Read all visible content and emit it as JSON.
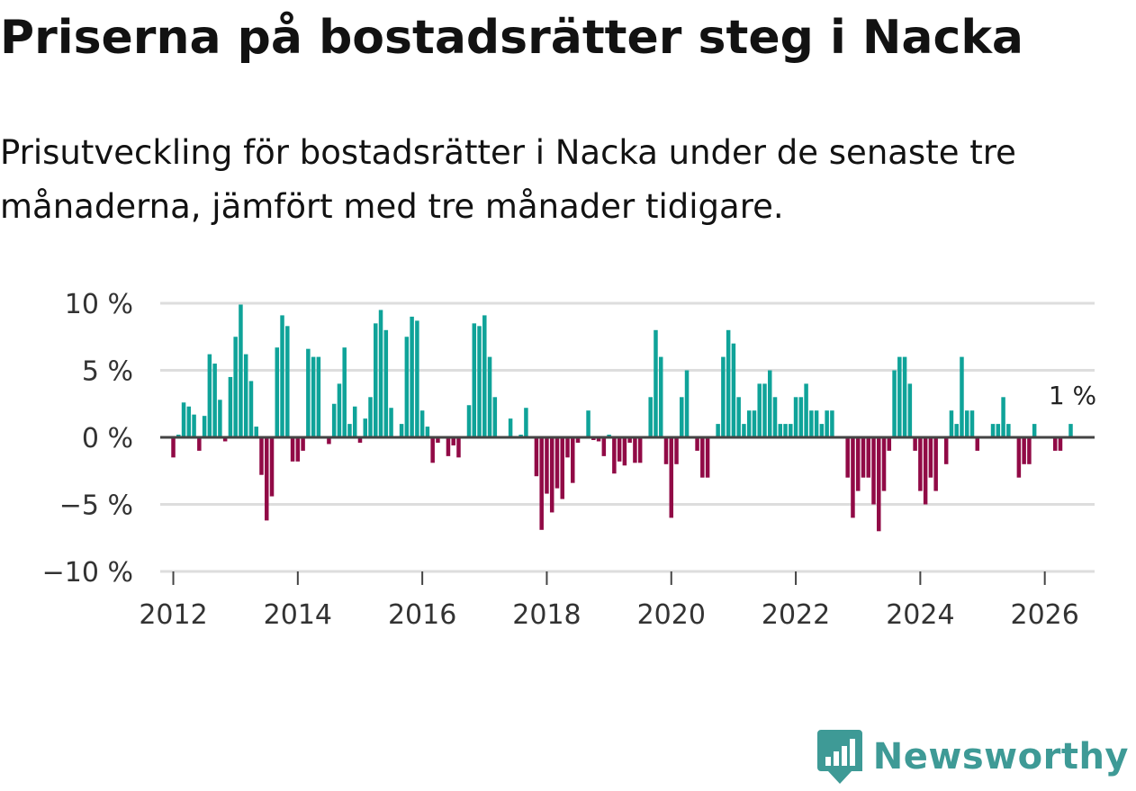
{
  "header": {
    "title": "Priserna på bostadsrätter steg i Nacka",
    "subtitle": "Prisutveckling för bostadsrätter i Nacka under de senaste tre månaderna, jämfört med tre månader tidigare."
  },
  "colors": {
    "positive": "#0fa399",
    "negative": "#910a46",
    "zero_line": "#444444",
    "grid": "#dddddd",
    "brand": "#3e9a96"
  },
  "branding": {
    "name": "Newsworthy",
    "icon": "bar-chart-badge-icon"
  },
  "chart_data": {
    "type": "bar",
    "title": "Priserna på bostadsrätter steg i Nacka",
    "xlabel": "",
    "ylabel": "",
    "ylim": [
      -10,
      10
    ],
    "x_start": 2011.79,
    "x_end": 2026.8,
    "y_ticks": [
      {
        "value": 10,
        "label": "10 %"
      },
      {
        "value": 5,
        "label": "5 %"
      },
      {
        "value": 0,
        "label": "0 %"
      },
      {
        "value": -5,
        "label": "−5 %"
      },
      {
        "value": -10,
        "label": "−10 %"
      }
    ],
    "x_ticks": [
      {
        "value": 2012,
        "label": "2012"
      },
      {
        "value": 2014,
        "label": "2014"
      },
      {
        "value": 2016,
        "label": "2016"
      },
      {
        "value": 2018,
        "label": "2018"
      },
      {
        "value": 2020,
        "label": "2020"
      },
      {
        "value": 2022,
        "label": "2022"
      },
      {
        "value": 2024,
        "label": "2024"
      },
      {
        "value": 2026,
        "label": "2026"
      }
    ],
    "start_year": 2012,
    "start_month": 1,
    "values": [
      -1.5,
      0.2,
      2.6,
      2.3,
      1.7,
      -1.0,
      1.6,
      6.2,
      5.5,
      2.8,
      -0.3,
      4.5,
      7.5,
      9.9,
      6.2,
      4.2,
      0.8,
      -2.8,
      -6.2,
      -4.4,
      6.7,
      9.1,
      8.3,
      -1.8,
      -1.8,
      -1.0,
      6.6,
      6.0,
      6.0,
      0.0,
      -0.5,
      2.5,
      4.0,
      6.7,
      1.0,
      2.3,
      -0.4,
      1.4,
      3.0,
      8.5,
      9.5,
      8.0,
      2.2,
      0.0,
      1.0,
      7.5,
      9.0,
      8.7,
      2.0,
      0.8,
      -1.9,
      -0.4,
      0.0,
      -1.4,
      -0.6,
      -1.5,
      0.0,
      2.4,
      8.5,
      8.3,
      9.1,
      6.0,
      3.0,
      0.0,
      0.1,
      1.4,
      0.0,
      0.2,
      2.2,
      0.0,
      -2.9,
      -6.9,
      -4.2,
      -5.6,
      -3.8,
      -4.6,
      -1.5,
      -3.4,
      -0.4,
      0.0,
      2.0,
      -0.2,
      -0.3,
      -1.4,
      0.2,
      -2.7,
      -1.8,
      -2.1,
      -0.4,
      -1.9,
      -1.9,
      0.0,
      3.0,
      8.0,
      6.0,
      -2.0,
      -6.0,
      -2.0,
      3.0,
      5.0,
      0.0,
      -1.0,
      -3.0,
      -3.0,
      0.0,
      1.0,
      6.0,
      8.0,
      7.0,
      3.0,
      1.0,
      2.0,
      2.0,
      4.0,
      4.0,
      5.0,
      3.0,
      1.0,
      1.0,
      1.0,
      3.0,
      3.0,
      4.0,
      2.0,
      2.0,
      1.0,
      2.0,
      2.0,
      0.0,
      0.0,
      -3.0,
      -6.0,
      -4.0,
      -3.0,
      -3.0,
      -5.0,
      -7.0,
      -4.0,
      -1.0,
      5.0,
      6.0,
      6.0,
      4.0,
      -1.0,
      -4.0,
      -5.0,
      -3.0,
      -4.0,
      0.0,
      -2.0,
      2.0,
      1.0,
      6.0,
      2.0,
      2.0,
      -1.0,
      0.0,
      0.0,
      1.0,
      1.0,
      3.0,
      1.0,
      0.0,
      -3.0,
      -2.0,
      -2.0,
      1.0,
      0.0,
      0.0,
      0.0,
      -1.0,
      -1.0,
      0.0,
      1.0
    ],
    "annotation": {
      "text": "1 %",
      "value": 1
    }
  }
}
